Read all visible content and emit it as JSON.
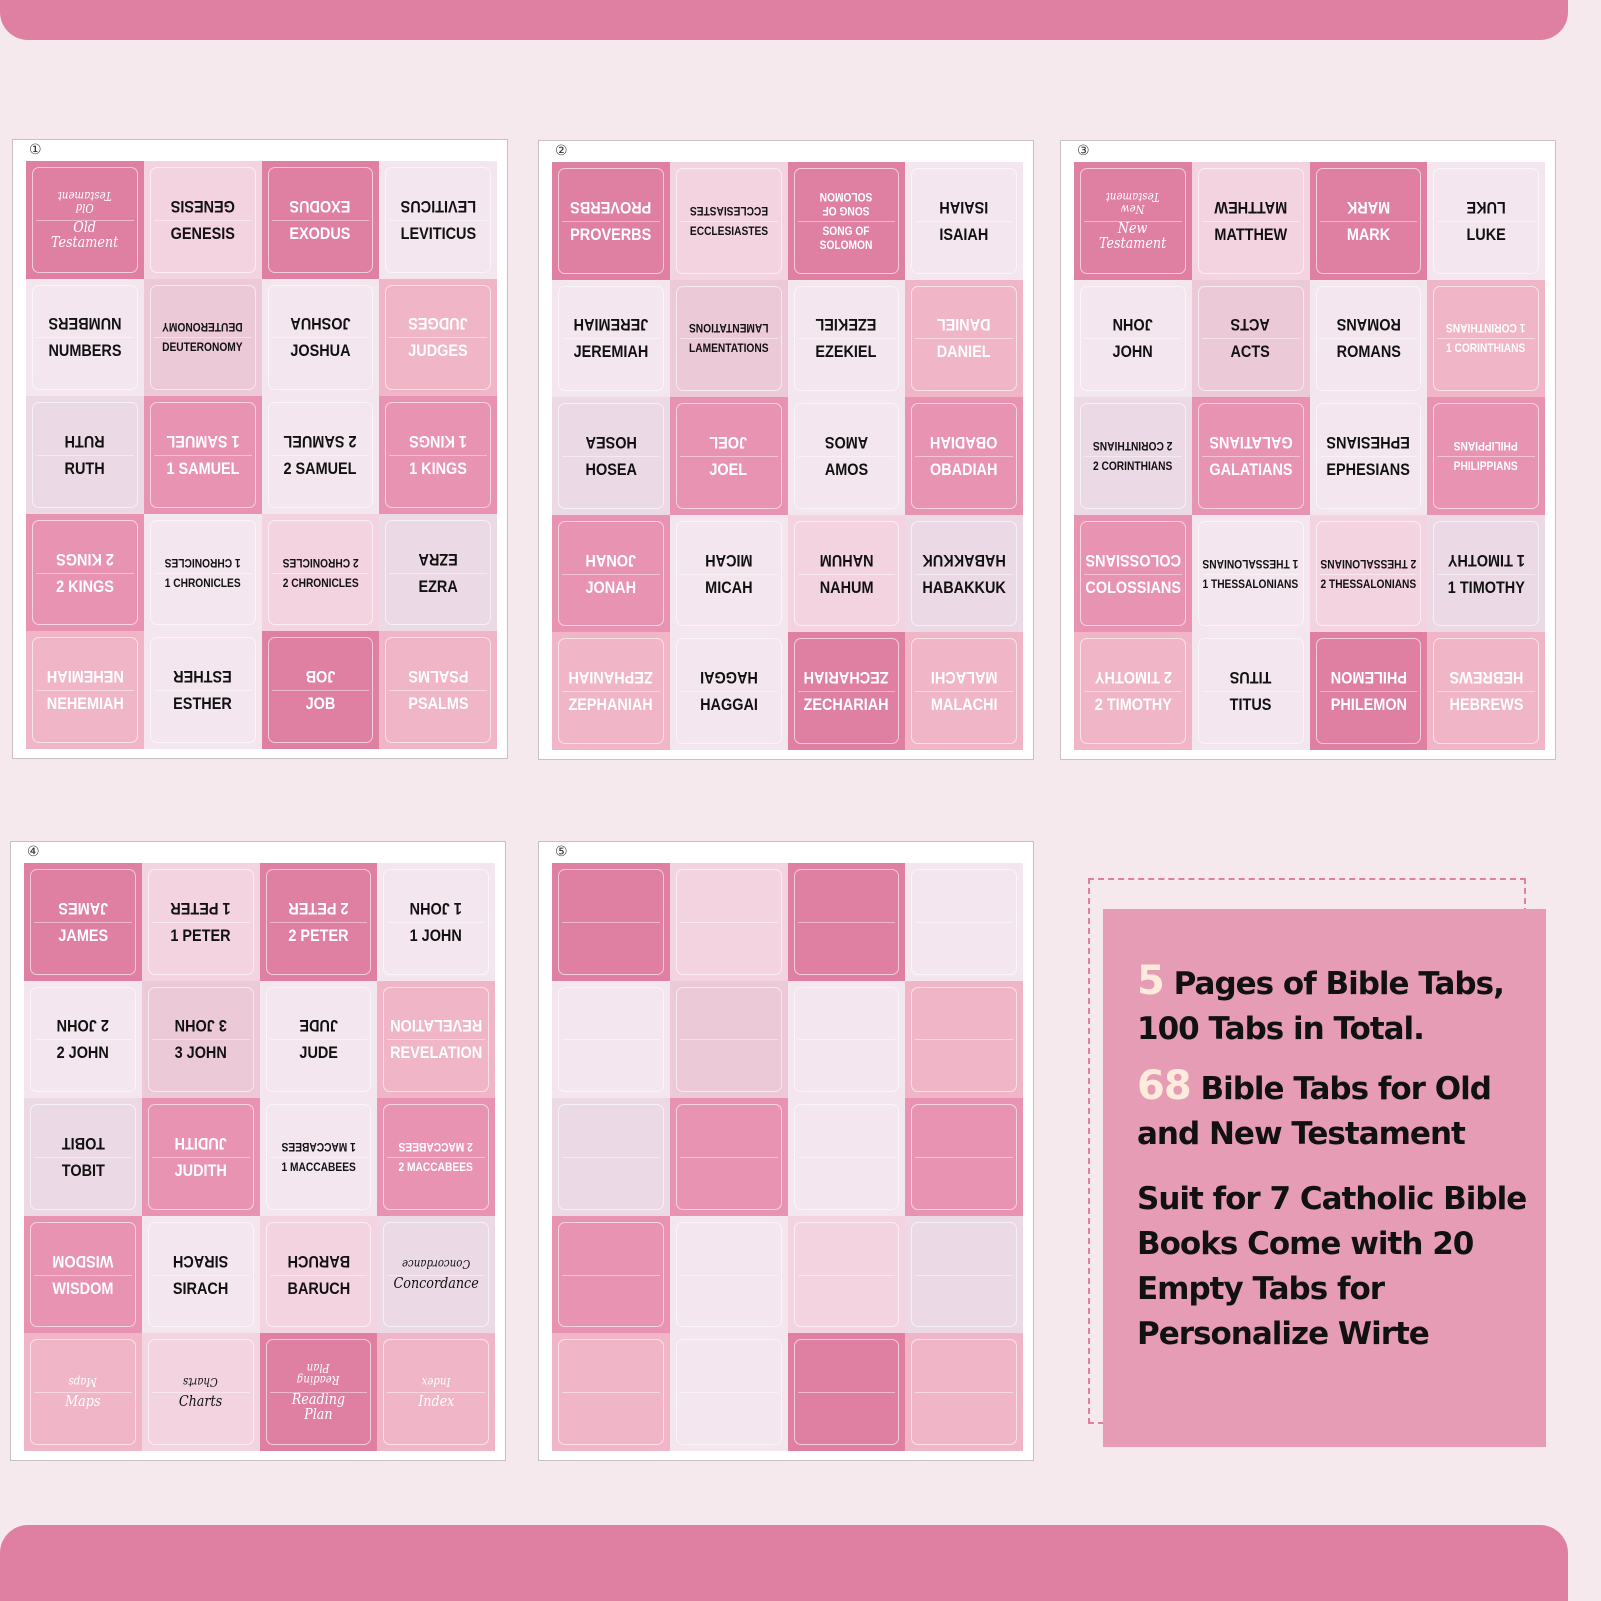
{
  "colors": {
    "background": "#f6e9ee",
    "bar": "#df7fa2",
    "highlight": "#fdecdc",
    "tones": {
      "dark": "#df7fa2",
      "medium": "#e993b2",
      "soft": "#f0b6c8",
      "blush": "#f3d3e0",
      "mauve": "#ecc9d6",
      "lavender": "#ecd9e6",
      "pale": "#f3e6ee"
    },
    "light_text_tones": [
      "dark",
      "medium",
      "soft"
    ]
  },
  "sheets": [
    {
      "number": "①",
      "tiles": [
        {
          "label": "Old\nTestament",
          "tone": "dark",
          "script": true
        },
        {
          "label": "GENESIS",
          "tone": "blush"
        },
        {
          "label": "EXODUS",
          "tone": "dark"
        },
        {
          "label": "LEVITICUS",
          "tone": "pale"
        },
        {
          "label": "NUMBERS",
          "tone": "pale"
        },
        {
          "label": "DEUTERONOMY",
          "tone": "mauve"
        },
        {
          "label": "JOSHUA",
          "tone": "pale"
        },
        {
          "label": "JUDGES",
          "tone": "soft"
        },
        {
          "label": "RUTH",
          "tone": "lavender"
        },
        {
          "label": "1 SAMUEL",
          "tone": "medium"
        },
        {
          "label": "2 SAMUEL",
          "tone": "pale"
        },
        {
          "label": "1 KINGS",
          "tone": "medium"
        },
        {
          "label": "2 KINGS",
          "tone": "medium"
        },
        {
          "label": "1 CHRONICLES",
          "tone": "pale"
        },
        {
          "label": "2 CHRONICLES",
          "tone": "blush"
        },
        {
          "label": "EZRA",
          "tone": "lavender"
        },
        {
          "label": "NEHEMIAH",
          "tone": "soft"
        },
        {
          "label": "ESTHER",
          "tone": "pale"
        },
        {
          "label": "JOB",
          "tone": "dark"
        },
        {
          "label": "PSALMS",
          "tone": "soft"
        }
      ]
    },
    {
      "number": "②",
      "tiles": [
        {
          "label": "PROVERBS",
          "tone": "dark"
        },
        {
          "label": "ECCLESIASTES",
          "tone": "blush"
        },
        {
          "label": "SONG OF\nSOLOMON",
          "tone": "dark"
        },
        {
          "label": "ISAIAH",
          "tone": "pale"
        },
        {
          "label": "JEREMIAH",
          "tone": "pale"
        },
        {
          "label": "LAMENTATIONS",
          "tone": "mauve"
        },
        {
          "label": "EZEKIEL",
          "tone": "pale"
        },
        {
          "label": "DANIEL",
          "tone": "soft"
        },
        {
          "label": "HOSEA",
          "tone": "lavender"
        },
        {
          "label": "JOEL",
          "tone": "medium"
        },
        {
          "label": "AMOS",
          "tone": "pale"
        },
        {
          "label": "OBADIAH",
          "tone": "medium"
        },
        {
          "label": "JONAH",
          "tone": "medium"
        },
        {
          "label": "MICAH",
          "tone": "pale"
        },
        {
          "label": "NAHUM",
          "tone": "blush"
        },
        {
          "label": "HABAKKUK",
          "tone": "lavender"
        },
        {
          "label": "ZEPHANIAH",
          "tone": "soft"
        },
        {
          "label": "HAGGAI",
          "tone": "pale"
        },
        {
          "label": "ZECHARIAH",
          "tone": "dark"
        },
        {
          "label": "MALACHI",
          "tone": "soft"
        }
      ]
    },
    {
      "number": "③",
      "tiles": [
        {
          "label": "New\nTestament",
          "tone": "dark",
          "script": true
        },
        {
          "label": "MATTHEW",
          "tone": "blush"
        },
        {
          "label": "MARK",
          "tone": "dark"
        },
        {
          "label": "LUKE",
          "tone": "pale"
        },
        {
          "label": "JOHN",
          "tone": "pale"
        },
        {
          "label": "ACTS",
          "tone": "mauve"
        },
        {
          "label": "ROMANS",
          "tone": "pale"
        },
        {
          "label": "1 CORINTHIANS",
          "tone": "soft"
        },
        {
          "label": "2 CORINTHIANS",
          "tone": "lavender"
        },
        {
          "label": "GALATIANS",
          "tone": "medium"
        },
        {
          "label": "EPHESIANS",
          "tone": "pale"
        },
        {
          "label": "PHILIPPIANS",
          "tone": "medium"
        },
        {
          "label": "COLOSSIANS",
          "tone": "medium"
        },
        {
          "label": "1 THESSALONIANS",
          "tone": "pale"
        },
        {
          "label": "2 THESSALONIANS",
          "tone": "blush"
        },
        {
          "label": "1 TIMOTHY",
          "tone": "lavender"
        },
        {
          "label": "2 TIMOTHY",
          "tone": "soft"
        },
        {
          "label": "TITUS",
          "tone": "pale"
        },
        {
          "label": "PHILEMON",
          "tone": "dark"
        },
        {
          "label": "HEBREWS",
          "tone": "soft"
        }
      ]
    },
    {
      "number": "④",
      "tiles": [
        {
          "label": "JAMES",
          "tone": "dark"
        },
        {
          "label": "1 PETER",
          "tone": "blush"
        },
        {
          "label": "2 PETER",
          "tone": "dark"
        },
        {
          "label": "1 JOHN",
          "tone": "pale"
        },
        {
          "label": "2 JOHN",
          "tone": "pale"
        },
        {
          "label": "3 JOHN",
          "tone": "mauve"
        },
        {
          "label": "JUDE",
          "tone": "pale"
        },
        {
          "label": "REVELATION",
          "tone": "soft"
        },
        {
          "label": "TOBIT",
          "tone": "lavender"
        },
        {
          "label": "JUDITH",
          "tone": "medium"
        },
        {
          "label": "1 MACCABEES",
          "tone": "pale"
        },
        {
          "label": "2 MACCABEES",
          "tone": "medium"
        },
        {
          "label": "WISDOM",
          "tone": "medium"
        },
        {
          "label": "SIRACH",
          "tone": "pale"
        },
        {
          "label": "BARUCH",
          "tone": "blush"
        },
        {
          "label": "Concordance",
          "tone": "lavender",
          "script": true
        },
        {
          "label": "Maps",
          "tone": "soft",
          "script": true
        },
        {
          "label": "Charts",
          "tone": "blush",
          "script": true
        },
        {
          "label": "Reading\nPlan",
          "tone": "dark",
          "script": true
        },
        {
          "label": "Index",
          "tone": "soft",
          "script": true
        }
      ]
    },
    {
      "number": "⑤",
      "tiles": [
        {
          "label": "",
          "tone": "dark"
        },
        {
          "label": "",
          "tone": "blush"
        },
        {
          "label": "",
          "tone": "dark"
        },
        {
          "label": "",
          "tone": "pale"
        },
        {
          "label": "",
          "tone": "pale"
        },
        {
          "label": "",
          "tone": "mauve"
        },
        {
          "label": "",
          "tone": "pale"
        },
        {
          "label": "",
          "tone": "soft"
        },
        {
          "label": "",
          "tone": "lavender"
        },
        {
          "label": "",
          "tone": "medium"
        },
        {
          "label": "",
          "tone": "pale"
        },
        {
          "label": "",
          "tone": "medium"
        },
        {
          "label": "",
          "tone": "medium"
        },
        {
          "label": "",
          "tone": "pale"
        },
        {
          "label": "",
          "tone": "blush"
        },
        {
          "label": "",
          "tone": "lavender"
        },
        {
          "label": "",
          "tone": "soft"
        },
        {
          "label": "",
          "tone": "pale"
        },
        {
          "label": "",
          "tone": "dark"
        },
        {
          "label": "",
          "tone": "soft"
        }
      ]
    }
  ],
  "info": {
    "line1_number": "5",
    "line1_text": " Pages of Bible Tabs, 100 Tabs in Total.",
    "line2_number": "68",
    "line2_text": " Bible Tabs for Old and New Testament",
    "line3_text": "Suit for 7 Catholic Bible Books Come with 20 Empty Tabs for Personalize Wirte"
  }
}
